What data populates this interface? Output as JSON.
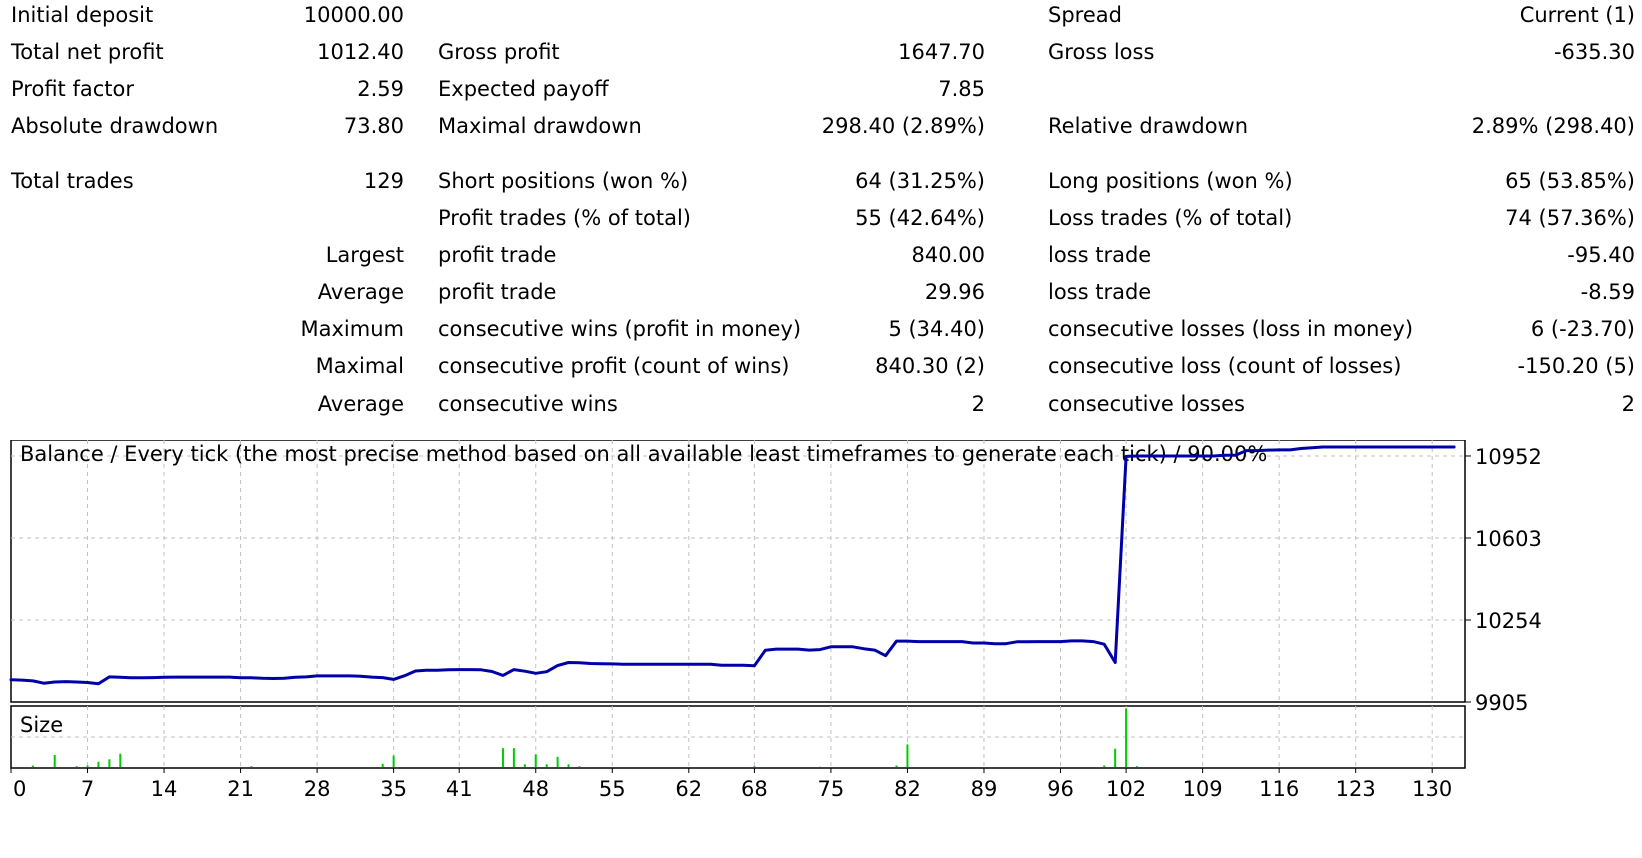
{
  "report": {
    "rows": [
      {
        "c1": "Initial deposit",
        "c2": "10000.00",
        "c3": "",
        "c4": "",
        "c5": "Spread",
        "c6": "Current (1)"
      },
      {
        "c1": "Total net profit",
        "c2": "1012.40",
        "c3": "Gross profit",
        "c4": "1647.70",
        "c5": "Gross loss",
        "c6": "-635.30"
      },
      {
        "c1": "Profit factor",
        "c2": "2.59",
        "c3": "Expected payoff",
        "c4": "7.85",
        "c5": "",
        "c6": ""
      },
      {
        "c1": "Absolute drawdown",
        "c2": "73.80",
        "c3": "Maximal drawdown",
        "c4": "298.40 (2.89%)",
        "c5": "Relative drawdown",
        "c6": "2.89% (298.40)"
      },
      {
        "c1": "Total trades",
        "c2": "129",
        "c3": "Short positions (won %)",
        "c4": "64 (31.25%)",
        "c5": "Long positions (won %)",
        "c6": "65 (53.85%)"
      },
      {
        "c1": "",
        "c2": "",
        "c3": "Profit trades (% of total)",
        "c4": "55 (42.64%)",
        "c5": "Loss trades (% of total)",
        "c6": "74 (57.36%)"
      },
      {
        "c1": "",
        "c2": "Largest",
        "c3": "profit trade",
        "c4": "840.00",
        "c5": "loss trade",
        "c6": "-95.40"
      },
      {
        "c1": "",
        "c2": "Average",
        "c3": "profit trade",
        "c4": "29.96",
        "c5": "loss trade",
        "c6": "-8.59"
      },
      {
        "c1": "",
        "c2": "Maximum",
        "c3": "consecutive wins (profit in money)",
        "c4": "5 (34.40)",
        "c5": "consecutive losses (loss in money)",
        "c6": "6 (-23.70)"
      },
      {
        "c1": "",
        "c2": "Maximal",
        "c3": "consecutive profit (count of wins)",
        "c4": "840.30 (2)",
        "c5": "consecutive loss (count of losses)",
        "c6": "-150.20 (5)"
      },
      {
        "c1": "",
        "c2": "Average",
        "c3": "consecutive wins",
        "c4": "2",
        "c5": "consecutive losses",
        "c6": "2"
      }
    ]
  },
  "colors": {
    "balance_line": "#0000aa",
    "size_bars": "#00cc00",
    "grid": "#c0c0c0",
    "frame": "#000000"
  },
  "chart_data": [
    {
      "type": "line",
      "title": "Balance / Every tick (the most precise method based on all available least timeframes to generate each tick) / 90.00%",
      "xlabel": "",
      "ylabel": "",
      "ylim": [
        9905,
        11020
      ],
      "xlim": [
        0,
        133
      ],
      "y_ticks": [
        9905,
        10254,
        10603,
        10952
      ],
      "x_ticks": [
        0,
        7,
        14,
        21,
        28,
        35,
        41,
        48,
        55,
        62,
        68,
        75,
        82,
        89,
        96,
        102,
        109,
        116,
        123,
        130
      ],
      "grid": true,
      "series": [
        {
          "name": "Balance",
          "x": [
            0,
            1,
            2,
            3,
            4,
            5,
            6,
            7,
            8,
            9,
            10,
            11,
            12,
            13,
            14,
            15,
            16,
            17,
            18,
            19,
            20,
            21,
            22,
            23,
            24,
            25,
            26,
            27,
            28,
            29,
            30,
            31,
            32,
            33,
            34,
            35,
            36,
            37,
            38,
            39,
            40,
            41,
            42,
            43,
            44,
            45,
            46,
            47,
            48,
            49,
            50,
            51,
            52,
            53,
            54,
            55,
            56,
            57,
            58,
            59,
            60,
            61,
            62,
            63,
            64,
            65,
            66,
            67,
            68,
            69,
            70,
            71,
            72,
            73,
            74,
            75,
            76,
            77,
            78,
            79,
            80,
            81,
            82,
            83,
            84,
            85,
            86,
            87,
            88,
            89,
            90,
            91,
            92,
            93,
            94,
            95,
            96,
            97,
            98,
            99,
            100,
            101,
            102,
            103,
            104,
            105,
            106,
            107,
            108,
            109,
            110,
            111,
            112,
            113,
            114,
            115,
            116,
            117,
            118,
            119,
            120,
            121,
            122,
            123,
            124,
            125,
            126,
            127,
            128,
            129,
            130,
            131,
            132
          ],
          "values": [
            10000,
            9998,
            9995,
            9985,
            9990,
            9992,
            9990,
            9988,
            9983,
            10012,
            10010,
            10008,
            10008,
            10009,
            10010,
            10011,
            10011,
            10011,
            10011,
            10011,
            10011,
            10008,
            10008,
            10006,
            10005,
            10006,
            10010,
            10012,
            10016,
            10016,
            10016,
            10016,
            10015,
            10011,
            10009,
            10001,
            10017,
            10037,
            10040,
            10040,
            10042,
            10043,
            10043,
            10042,
            10035,
            10018,
            10043,
            10036,
            10027,
            10034,
            10060,
            10073,
            10072,
            10069,
            10068,
            10067,
            10066,
            10066,
            10066,
            10066,
            10066,
            10066,
            10066,
            10066,
            10066,
            10061,
            10061,
            10061,
            10059,
            10125,
            10130,
            10130,
            10130,
            10126,
            10128,
            10140,
            10140,
            10140,
            10132,
            10126,
            10102,
            10164,
            10164,
            10162,
            10162,
            10162,
            10162,
            10162,
            10156,
            10156,
            10153,
            10153,
            10161,
            10161,
            10162,
            10162,
            10162,
            10165,
            10165,
            10162,
            10151,
            10073,
            10950,
            10952,
            10952,
            10952,
            10952,
            10952,
            10952,
            10952,
            10952,
            10955,
            10955,
            10975,
            10975,
            10977,
            10978,
            10978,
            10984,
            10987,
            10990,
            10990,
            10990,
            10990,
            10990,
            10990,
            10990,
            10990,
            10990,
            10990,
            10990,
            10990,
            10990
          ]
        }
      ]
    },
    {
      "type": "bar",
      "title": "Size",
      "xlabel": "",
      "ylabel": "",
      "ylim": [
        0,
        10
      ],
      "grid": true,
      "series": [
        {
          "name": "Size",
          "x": [
            2,
            4,
            6,
            7,
            8,
            9,
            10,
            22,
            34,
            35,
            45,
            46,
            47,
            48,
            49,
            50,
            51,
            52,
            68,
            74,
            81,
            82,
            100,
            101,
            102,
            103
          ],
          "values": [
            0.4,
            2.1,
            0.3,
            0.4,
            1.0,
            1.4,
            2.3,
            0.3,
            0.7,
            2.0,
            3.2,
            3.2,
            0.6,
            2.2,
            0.6,
            1.8,
            0.6,
            0.3,
            0.3,
            0.2,
            0.4,
            3.8,
            0.4,
            3.1,
            9.6,
            0.3
          ]
        }
      ]
    }
  ]
}
